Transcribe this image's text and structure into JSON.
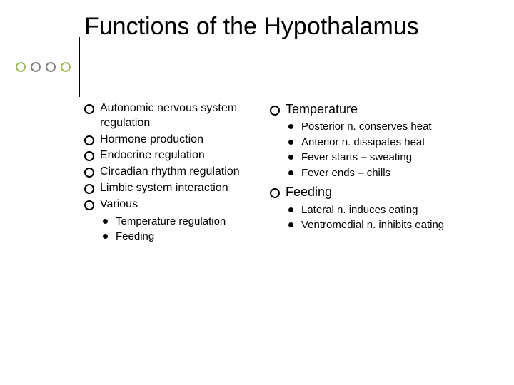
{
  "decor": {
    "circle_colors": [
      "#9bbb59",
      "#808080",
      "#808080",
      "#9bbb59"
    ],
    "bar_color": "#000000"
  },
  "title": "Functions of the Hypothalamus",
  "left": {
    "items": [
      "Autonomic nervous system regulation",
      "Hormone production",
      "Endocrine regulation",
      "Circadian rhythm regulation",
      "Limbic system interaction",
      "Various"
    ],
    "various_subs": [
      "Temperature regulation",
      "Feeding"
    ]
  },
  "right": {
    "temperature": {
      "label": "Temperature",
      "subs": [
        "Posterior n. conserves heat",
        "Anterior n. dissipates heat",
        "Fever starts – sweating",
        "Fever ends – chills"
      ]
    },
    "feeding": {
      "label": "Feeding",
      "subs": [
        "Lateral n. induces eating",
        "Ventromedial n. inhibits eating"
      ]
    }
  }
}
